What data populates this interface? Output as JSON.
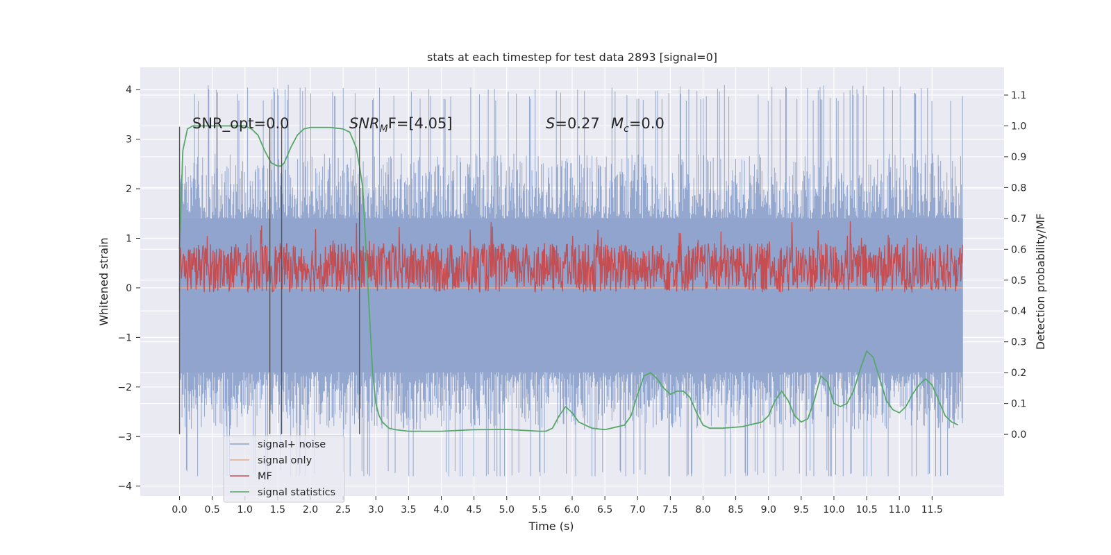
{
  "chart_data": {
    "type": "line",
    "title": "stats at each timestep for test data 2893 [signal=0]",
    "xlabel": "Time (s)",
    "ylabel": "Whitened strain",
    "ylabel_right": "Detection probability/MF",
    "xlim": [
      -0.6,
      12.6
    ],
    "ylim": [
      -4.2,
      4.45
    ],
    "ylim_right": [
      -0.2,
      1.19
    ],
    "x_ticks": [
      "0.0",
      "0.5",
      "1.0",
      "1.5",
      "2.0",
      "2.5",
      "3.0",
      "3.5",
      "4.0",
      "4.5",
      "5.0",
      "5.5",
      "6.0",
      "6.5",
      "7.0",
      "7.5",
      "8.0",
      "8.5",
      "9.0",
      "9.5",
      "10.0",
      "10.5",
      "11.0",
      "11.5"
    ],
    "y_ticks": [
      "−4",
      "−3",
      "−2",
      "−1",
      "0",
      "1",
      "2",
      "3",
      "4"
    ],
    "y_ticks_right": [
      "0.0",
      "0.1",
      "0.2",
      "0.3",
      "0.4",
      "0.5",
      "0.6",
      "0.7",
      "0.8",
      "0.9",
      "1.0",
      "1.1"
    ],
    "grid": true,
    "legend_position": "lower-left",
    "annotations": {
      "snr_opt": "SNR_opt=0.0",
      "snr_mf_main": "SNR",
      "snr_mf_sub": "M",
      "snr_mf_rest": "F=[4.05]",
      "s_label": "S",
      "s_rest": "=0.27",
      "mc_label": "M",
      "mc_sub": "c",
      "mc_rest": "=0.0"
    },
    "vertical_lines_x": [
      0.0,
      1.38,
      1.56,
      2.75
    ],
    "series": [
      {
        "name": "signal+ noise",
        "color": "#8fa3cc",
        "axis": "left",
        "x_range": [
          0.0,
          11.97
        ],
        "band_low": -1.7,
        "band_high": 1.4,
        "spike_low": -3.8,
        "spike_high": 4.1
      },
      {
        "name": "signal only",
        "color": "#e8a98a",
        "axis": "left",
        "x": [
          0.0,
          11.97
        ],
        "y": [
          0.0,
          0.0
        ]
      },
      {
        "name": "MF",
        "color": "#c44e52",
        "axis": "right",
        "x_range": [
          0.0,
          11.97
        ],
        "center": 0.54,
        "spread": 0.05
      },
      {
        "name": "signal statistics",
        "color": "#55a868",
        "axis": "right",
        "x": [
          0.0,
          0.05,
          0.12,
          0.2,
          0.3,
          0.5,
          1.0,
          1.1,
          1.2,
          1.3,
          1.4,
          1.5,
          1.55,
          1.6,
          1.7,
          1.8,
          1.9,
          2.0,
          2.3,
          2.5,
          2.6,
          2.7,
          2.75,
          2.8,
          2.85,
          2.9,
          2.95,
          3.0,
          3.05,
          3.1,
          3.2,
          3.3,
          3.5,
          4.0,
          4.5,
          5.0,
          5.5,
          5.6,
          5.7,
          5.8,
          5.9,
          6.0,
          6.1,
          6.3,
          6.5,
          6.8,
          6.9,
          7.0,
          7.1,
          7.2,
          7.3,
          7.4,
          7.5,
          7.6,
          7.7,
          7.8,
          7.9,
          8.0,
          8.1,
          8.3,
          8.6,
          8.9,
          9.0,
          9.1,
          9.2,
          9.3,
          9.4,
          9.5,
          9.6,
          9.7,
          9.8,
          9.9,
          10.0,
          10.1,
          10.2,
          10.3,
          10.4,
          10.5,
          10.6,
          10.7,
          10.8,
          10.9,
          11.0,
          11.1,
          11.2,
          11.3,
          11.4,
          11.5,
          11.6,
          11.7,
          11.8,
          11.9
        ],
        "y": [
          0.6,
          0.92,
          0.99,
          1.0,
          1.0,
          1.0,
          1.0,
          0.99,
          0.97,
          0.92,
          0.88,
          0.87,
          0.87,
          0.88,
          0.93,
          0.97,
          0.99,
          0.995,
          0.995,
          0.99,
          0.98,
          0.93,
          0.87,
          0.8,
          0.6,
          0.4,
          0.2,
          0.1,
          0.06,
          0.04,
          0.02,
          0.015,
          0.01,
          0.01,
          0.015,
          0.016,
          0.01,
          0.01,
          0.02,
          0.06,
          0.09,
          0.07,
          0.04,
          0.02,
          0.015,
          0.03,
          0.06,
          0.13,
          0.19,
          0.2,
          0.18,
          0.15,
          0.13,
          0.14,
          0.14,
          0.12,
          0.07,
          0.03,
          0.02,
          0.02,
          0.025,
          0.04,
          0.06,
          0.11,
          0.14,
          0.11,
          0.06,
          0.04,
          0.05,
          0.11,
          0.19,
          0.17,
          0.1,
          0.09,
          0.1,
          0.14,
          0.21,
          0.27,
          0.25,
          0.18,
          0.11,
          0.08,
          0.07,
          0.09,
          0.13,
          0.16,
          0.18,
          0.16,
          0.11,
          0.06,
          0.04,
          0.03
        ]
      }
    ]
  }
}
